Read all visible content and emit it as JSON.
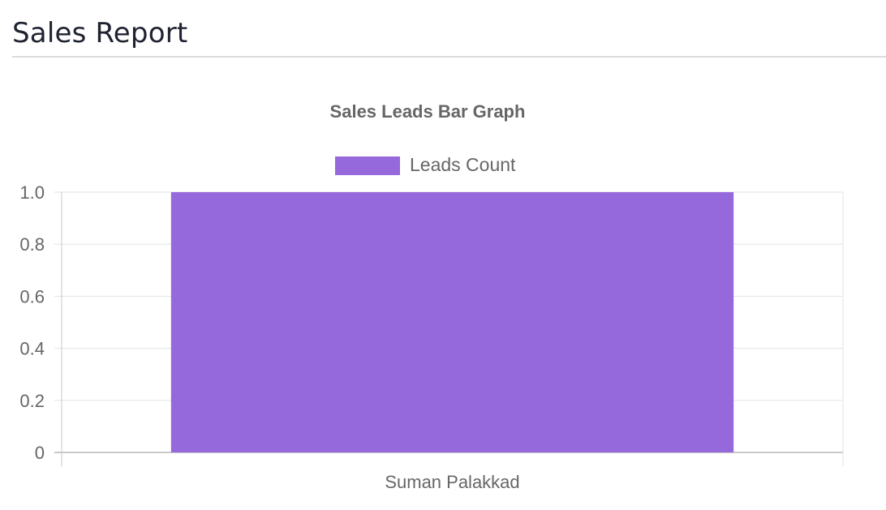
{
  "page": {
    "title": "Sales Report"
  },
  "chart_data": {
    "type": "bar",
    "title": "Sales Leads Bar Graph",
    "categories": [
      "Suman Palakkad"
    ],
    "series": [
      {
        "name": "Leads Count",
        "values": [
          1
        ],
        "color": "#9569dc"
      }
    ],
    "ylim": [
      0,
      1
    ],
    "yticks": [
      "0",
      "0.2",
      "0.4",
      "0.6",
      "0.8",
      "1.0"
    ],
    "ytick_values": [
      0,
      0.2,
      0.4,
      0.6,
      0.8,
      1.0
    ],
    "legend": "top",
    "grid": true
  }
}
